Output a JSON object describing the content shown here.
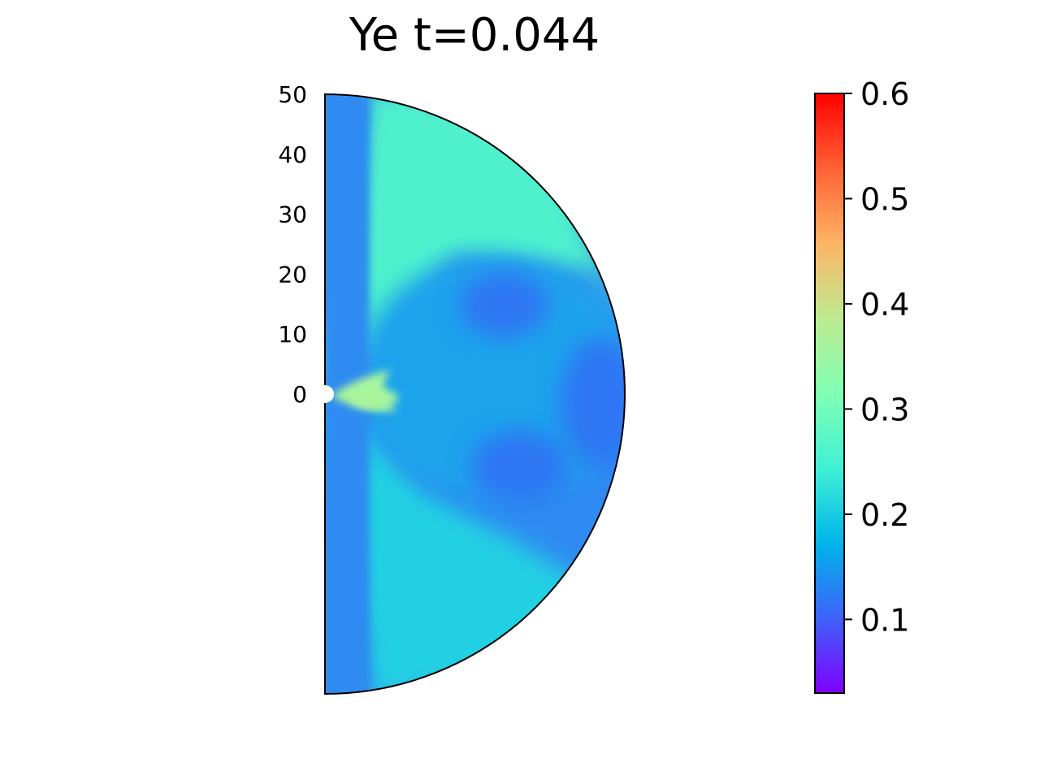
{
  "chart_data": {
    "type": "heatmap",
    "title": "Ye t=0.044",
    "plot_shape": "half-disk (meridional slice)",
    "yticks": [
      "50",
      "40",
      "30",
      "20",
      "10",
      "0"
    ],
    "ylim": [
      -50,
      50
    ],
    "colorbar": {
      "colormap": "rainbow",
      "vmin": 0.03,
      "vmax": 0.6,
      "ticks": [
        "0.1",
        "0.2",
        "0.3",
        "0.4",
        "0.5",
        "0.6"
      ],
      "stops": [
        "#7f00ff",
        "#3f62fa",
        "#00b5eb",
        "#41f0d4",
        "#80ffb4",
        "#bdeb91",
        "#feb466",
        "#ff6134",
        "#ff0000"
      ]
    },
    "field_description_colors": {
      "background": "#2f8bf1",
      "jet": "#4ff1cd",
      "wind": "#21d0e3",
      "inner_blob": "#1ca3ec",
      "low_ye": "#2f76f4",
      "hot": "#a9f59c"
    }
  }
}
